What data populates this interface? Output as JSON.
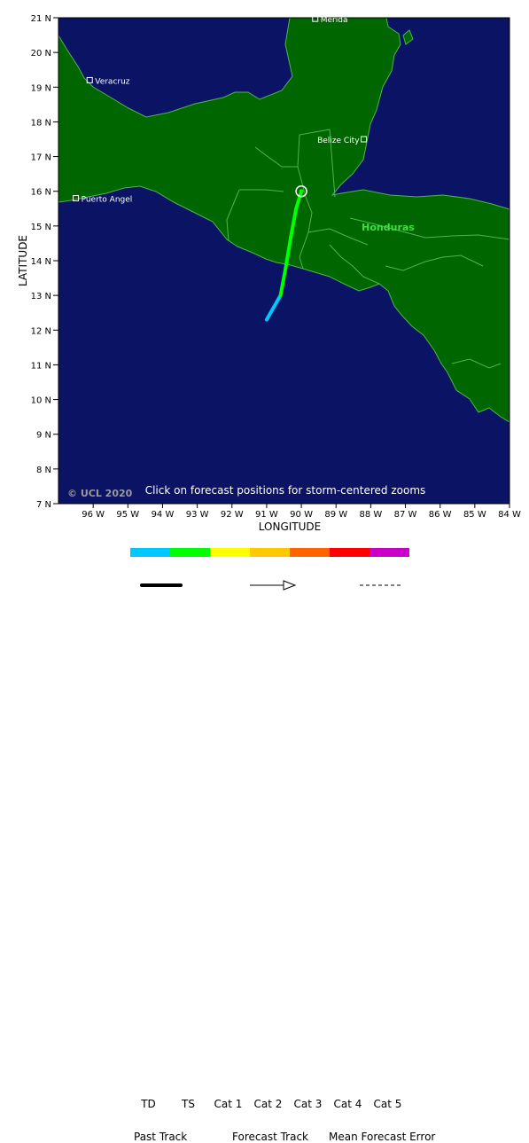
{
  "map": {
    "lat_ticks": [
      "21 N",
      "20 N",
      "19 N",
      "18 N",
      "17 N",
      "16 N",
      "15 N",
      "14 N",
      "13 N",
      "12 N",
      "11 N",
      "10 N",
      "9 N",
      "8 N",
      "7 N"
    ],
    "lon_ticks": [
      "96 W",
      "95 W",
      "94 W",
      "93 W",
      "92 W",
      "91 W",
      "90 W",
      "89 W",
      "88 W",
      "87 W",
      "86 W",
      "85 W",
      "84 W"
    ],
    "xlabel": "LONGITUDE",
    "ylabel": "LATITUDE",
    "cities": [
      {
        "name": "Merida",
        "lon": -89.6,
        "lat": 20.97
      },
      {
        "name": "Veracruz",
        "lon": -96.1,
        "lat": 19.2
      },
      {
        "name": "Belize City",
        "lon": -88.2,
        "lat": 17.5
      },
      {
        "name": "Puerto Angel",
        "lon": -96.5,
        "lat": 15.8
      }
    ],
    "region_label": "Honduras",
    "copyright": "© UCL 2020",
    "hint": "Click on forecast positions for storm-centered zooms",
    "colors": {
      "ocean": "#0b1464",
      "land": "#006600",
      "border": "#4fb44f",
      "td": "#00c8ff",
      "ts": "#00ff00"
    }
  },
  "track": {
    "points": [
      {
        "lon": -91.0,
        "lat": 12.3,
        "category": "TD"
      },
      {
        "lon": -90.6,
        "lat": 13.0,
        "category": "TD"
      },
      {
        "lon": -90.45,
        "lat": 13.8,
        "category": "TS"
      },
      {
        "lon": -90.3,
        "lat": 14.7,
        "category": "TS"
      },
      {
        "lon": -90.15,
        "lat": 15.5,
        "category": "TS"
      },
      {
        "lon": -90.0,
        "lat": 16.0,
        "category": "TS"
      }
    ],
    "current": {
      "lon": -90.0,
      "lat": 16.0
    }
  },
  "legend": {
    "categories": [
      {
        "label": "TD",
        "color": "#00c8ff"
      },
      {
        "label": "TS",
        "color": "#00ff00"
      },
      {
        "label": "Cat 1",
        "color": "#ffff00"
      },
      {
        "label": "Cat 2",
        "color": "#ffc800"
      },
      {
        "label": "Cat 3",
        "color": "#ff6400"
      },
      {
        "label": "Cat 4",
        "color": "#ff0000"
      },
      {
        "label": "Cat 5",
        "color": "#c800c8"
      }
    ],
    "past_track": "Past Track",
    "forecast_track": "Forecast Track",
    "mean_error": "Mean Forecast Error"
  }
}
